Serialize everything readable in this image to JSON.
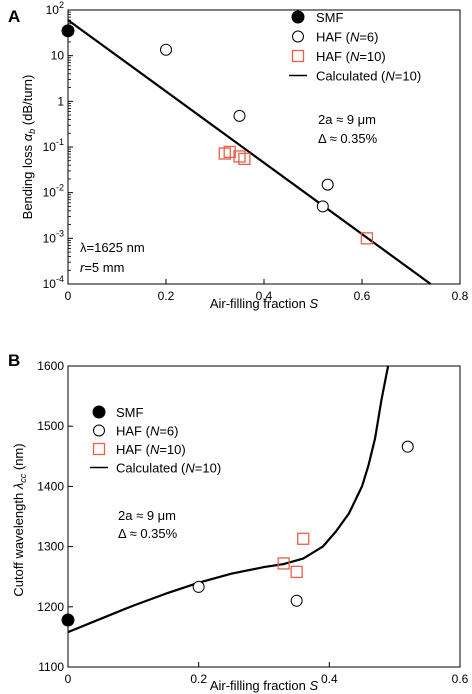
{
  "figure": {
    "panels": [
      "A",
      "B"
    ]
  },
  "colors": {
    "smf": "#000000",
    "haf6": "#000000",
    "haf10": "#e8604a",
    "calc": "#000000"
  },
  "chart_data": [
    {
      "type": "scatter",
      "panel": "A",
      "xlabel_main": "Air-filling fraction ",
      "xlabel_italic": "S",
      "ylabel_main": "Bending loss ",
      "ylabel_sym": "α",
      "ylabel_sub": "b",
      "ylabel_unit": " (dB/turn)",
      "xlim": [
        0,
        0.8
      ],
      "ylim": [
        0.0001,
        100
      ],
      "yscale": "log",
      "x_ticks": [
        "0",
        "0.2",
        "0.4",
        "0.6",
        "0.8"
      ],
      "y_ticks": [
        {
          "base": "10",
          "exp": "-4"
        },
        {
          "base": "10",
          "exp": "-3"
        },
        {
          "base": "10",
          "exp": "-2"
        },
        {
          "base": "10",
          "exp": "-1"
        },
        {
          "base": "1",
          "exp": ""
        },
        {
          "base": "10",
          "exp": ""
        },
        {
          "base": "10",
          "exp": "2"
        }
      ],
      "legend": [
        {
          "marker": "filled-circle",
          "text": "SMF",
          "ital": "",
          "post": ""
        },
        {
          "marker": "open-circle",
          "text": "HAF (",
          "ital": "N",
          "post": "=6)"
        },
        {
          "marker": "open-square",
          "text": "HAF (",
          "ital": "N",
          "post": "=10)"
        },
        {
          "marker": "line",
          "text": "Calculated (",
          "ital": "N",
          "post": "=10)"
        }
      ],
      "annotations": {
        "core": "2a ≈ 9 μm",
        "delta": "Δ ≈ 0.35%",
        "lambda": "λ=1625 nm",
        "radius_ital": "r",
        "radius_rest": "=5 mm"
      },
      "series": [
        {
          "name": "SMF",
          "x": [
            0.0
          ],
          "y": [
            35
          ]
        },
        {
          "name": "HAF (N=6)",
          "x": [
            0.2,
            0.35,
            0.52,
            0.53
          ],
          "y": [
            13.5,
            0.48,
            0.005,
            0.015
          ]
        },
        {
          "name": "HAF (N=10)",
          "x": [
            0.32,
            0.33,
            0.35,
            0.36,
            0.61
          ],
          "y": [
            0.072,
            0.078,
            0.062,
            0.055,
            0.001
          ]
        },
        {
          "name": "Calculated (N=10)",
          "x": [
            0.0,
            0.74
          ],
          "y": [
            60,
            0.0001
          ]
        }
      ]
    },
    {
      "type": "scatter",
      "panel": "B",
      "xlabel_main": "Air-filling fraction ",
      "xlabel_italic": "S",
      "ylabel_main": "Cutoff wavelength ",
      "ylabel_sym": "λ",
      "ylabel_sub": "cc",
      "ylabel_unit": " (nm)",
      "xlim": [
        0,
        0.6
      ],
      "ylim": [
        1100,
        1600
      ],
      "x_ticks": [
        "0",
        "0.2",
        "0.4",
        "0.6"
      ],
      "y_ticks": [
        "1100",
        "1200",
        "1300",
        "1400",
        "1500",
        "1600"
      ],
      "legend": [
        {
          "marker": "filled-circle",
          "text": "SMF",
          "ital": "",
          "post": ""
        },
        {
          "marker": "open-circle",
          "text": "HAF (",
          "ital": "N",
          "post": "=6)"
        },
        {
          "marker": "open-square",
          "text": "HAF (",
          "ital": "N",
          "post": "=10)"
        },
        {
          "marker": "line",
          "text": "Calculated (",
          "ital": "N",
          "post": "=10)"
        }
      ],
      "annotations": {
        "core": "2a ≈ 9 μm",
        "delta": "Δ ≈ 0.35%"
      },
      "series": [
        {
          "name": "SMF",
          "x": [
            0.0
          ],
          "y": [
            1178
          ]
        },
        {
          "name": "HAF (N=6)",
          "x": [
            0.2,
            0.35,
            0.52
          ],
          "y": [
            1233,
            1210,
            1466
          ]
        },
        {
          "name": "HAF (N=10)",
          "x": [
            0.33,
            0.35,
            0.36
          ],
          "y": [
            1272,
            1258,
            1313
          ]
        },
        {
          "name": "Calculated (N=10)",
          "x": [
            0.0,
            0.05,
            0.1,
            0.15,
            0.2,
            0.25,
            0.3,
            0.33,
            0.36,
            0.39,
            0.41,
            0.43,
            0.45,
            0.46,
            0.47,
            0.48,
            0.49
          ],
          "y": [
            1158,
            1180,
            1202,
            1222,
            1240,
            1255,
            1266,
            1271,
            1280,
            1300,
            1325,
            1355,
            1400,
            1435,
            1480,
            1545,
            1600
          ]
        }
      ]
    }
  ]
}
